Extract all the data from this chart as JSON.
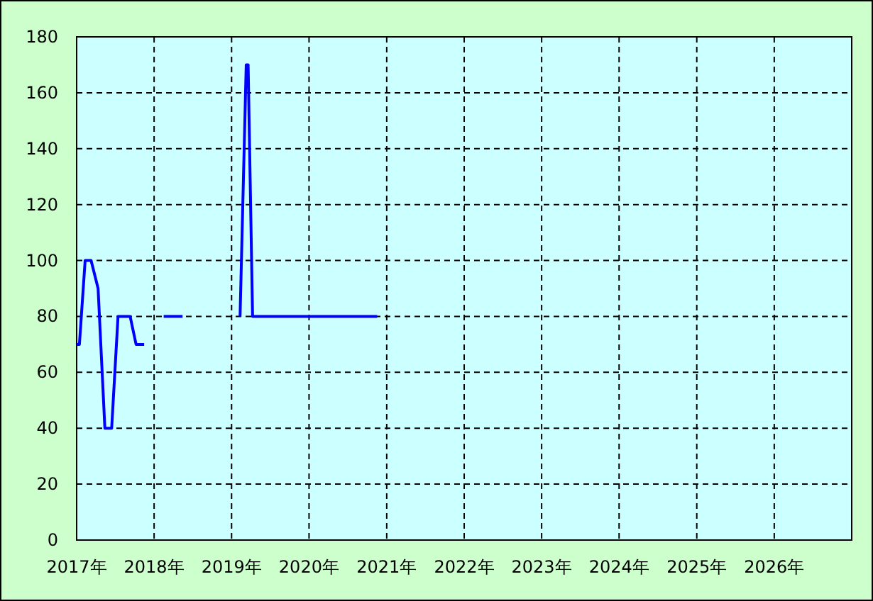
{
  "chart_data": {
    "type": "line",
    "series": [
      {
        "color": "#0000ff",
        "x": [
          "2017-01-01",
          "2017-01-14",
          "2017-02-10",
          "2017-03-10",
          "2017-04-12",
          "2017-05-14",
          "2017-06-15",
          "2017-07-15",
          "2017-09-10",
          "2017-10-08",
          "2017-11-15"
        ],
        "values": [
          70,
          70,
          100,
          100,
          90,
          40,
          40,
          80,
          80,
          70,
          70
        ]
      },
      {
        "color": "#0000ff",
        "x": [
          "2018-02-15",
          "2018-05-15"
        ],
        "values": [
          80,
          80
        ]
      },
      {
        "color": "#0000ff",
        "x": [
          "2019-02-10",
          "2019-03-11",
          "2019-03-20",
          "2019-04-10",
          "2020-11-17"
        ],
        "values": [
          80,
          170,
          170,
          80,
          80
        ]
      }
    ],
    "xlim": [
      "2017-01-01",
      "2027-01-01"
    ],
    "xticks": [
      {
        "value": "2017-01-01",
        "label": "2017年"
      },
      {
        "value": "2018-01-01",
        "label": "2018年"
      },
      {
        "value": "2019-01-01",
        "label": "2019年"
      },
      {
        "value": "2020-01-01",
        "label": "2020年"
      },
      {
        "value": "2021-01-01",
        "label": "2021年"
      },
      {
        "value": "2022-01-01",
        "label": "2022年"
      },
      {
        "value": "2023-01-01",
        "label": "2023年"
      },
      {
        "value": "2024-01-01",
        "label": "2024年"
      },
      {
        "value": "2025-01-01",
        "label": "2025年"
      },
      {
        "value": "2026-01-01",
        "label": "2026年"
      }
    ],
    "ylim": [
      0,
      180
    ],
    "yticks": [
      0,
      20,
      40,
      60,
      80,
      100,
      120,
      140,
      160,
      180
    ],
    "grid": true,
    "line_style": "solid"
  }
}
